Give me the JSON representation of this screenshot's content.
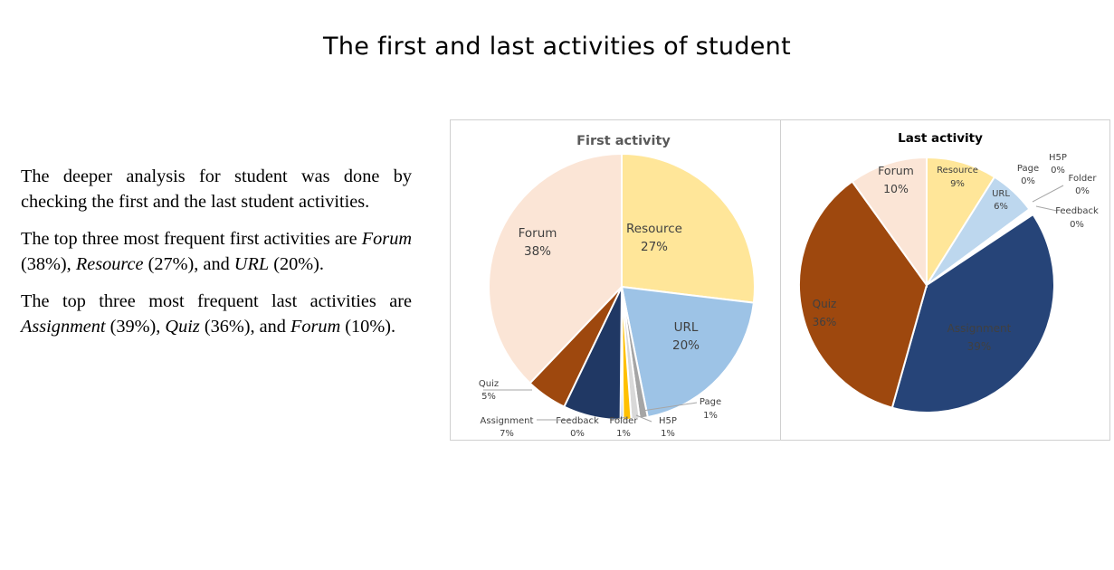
{
  "slide": {
    "title": "The first and last activities of student"
  },
  "body": {
    "p1": "The deeper analysis for student was done by checking the first and the last student activities.",
    "p2": {
      "lead": "The top three most frequent first activities are ",
      "i1": "Forum",
      "t1": " (38%), ",
      "i2": "Resource",
      "t2": " (27%), and ",
      "i3": "URL",
      "t3": " (20%)."
    },
    "p3": {
      "lead": "The top three most frequent last activities are ",
      "i1": "Assignment",
      "t1": " (39%), ",
      "i2": "Quiz",
      "t2": " (36%), and ",
      "i3": "Forum",
      "t3": " (10%)."
    }
  },
  "chart_data": [
    {
      "type": "pie",
      "title": "First activity",
      "slices": [
        {
          "name": "Resource",
          "value": 27,
          "label": "27%",
          "color": "#FFE699"
        },
        {
          "name": "URL",
          "value": 20,
          "label": "20%",
          "color": "#9DC3E6"
        },
        {
          "name": "Page",
          "value": 1,
          "label": "1%",
          "color": "#A5A5A5"
        },
        {
          "name": "H5P",
          "value": 1,
          "label": "1%",
          "color": "#D9D9D9"
        },
        {
          "name": "Folder",
          "value": 1,
          "label": "1%",
          "color": "#FFC000"
        },
        {
          "name": "Feedback",
          "value": 0.3,
          "label": "0%",
          "color": "#4472C4"
        },
        {
          "name": "Assignment",
          "value": 7,
          "label": "7%",
          "color": "#203864"
        },
        {
          "name": "Quiz",
          "value": 5,
          "label": "5%",
          "color": "#9E480E"
        },
        {
          "name": "Forum",
          "value": 38,
          "label": "38%",
          "color": "#FBE5D6"
        }
      ]
    },
    {
      "type": "pie",
      "title": "Last activity",
      "slices": [
        {
          "name": "Resource",
          "value": 9,
          "label": "9%",
          "color": "#FFE699"
        },
        {
          "name": "URL",
          "value": 6,
          "label": "6%",
          "color": "#BDD7EE"
        },
        {
          "name": "Page",
          "value": 0.2,
          "label": "0%",
          "color": "#A5A5A5"
        },
        {
          "name": "H5P",
          "value": 0.2,
          "label": "0%",
          "color": "#D9D9D9"
        },
        {
          "name": "Folder",
          "value": 0.2,
          "label": "0%",
          "color": "#FFC000"
        },
        {
          "name": "Feedback",
          "value": 0.2,
          "label": "0%",
          "color": "#4472C4"
        },
        {
          "name": "Assignment",
          "value": 39,
          "label": "39%",
          "color": "#264478"
        },
        {
          "name": "Quiz",
          "value": 36,
          "label": "36%",
          "color": "#9E480E"
        },
        {
          "name": "Forum",
          "value": 10,
          "label": "10%",
          "color": "#FBE5D6"
        }
      ]
    }
  ]
}
